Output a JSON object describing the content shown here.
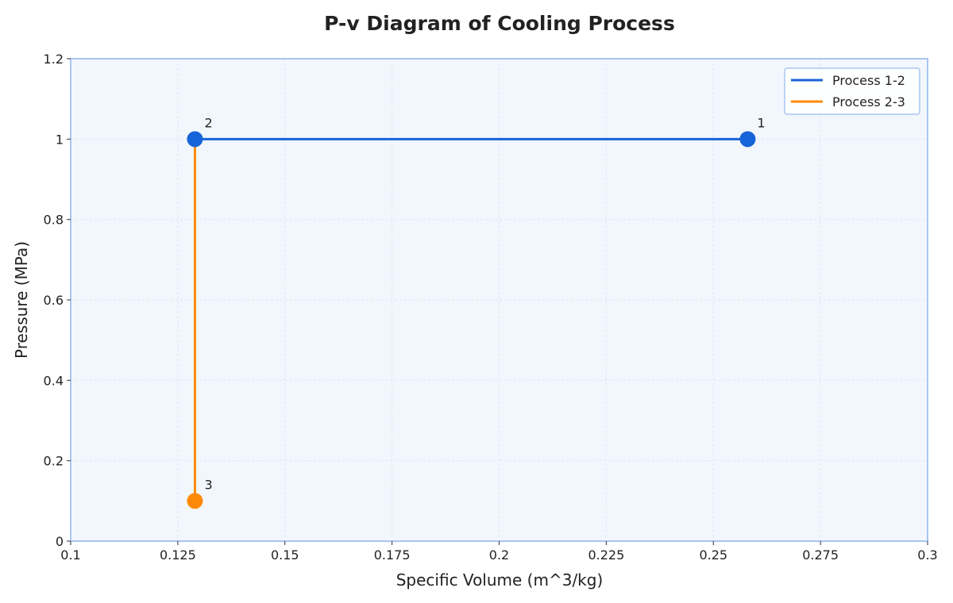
{
  "chart_data": {
    "type": "line",
    "title": "P-v Diagram of Cooling Process",
    "xlabel": "Specific Volume (m^3/kg)",
    "ylabel": "Pressure (MPa)",
    "xlim": [
      0.1,
      0.3
    ],
    "ylim": [
      0,
      1.2
    ],
    "xticks": [
      0.1,
      0.125,
      0.15,
      0.175,
      0.2,
      0.225,
      0.25,
      0.275,
      0.3
    ],
    "xtick_labels": [
      "0.1",
      "0.125",
      "0.15",
      "0.175",
      "0.2",
      "0.225",
      "0.25",
      "0.275",
      "0.3"
    ],
    "yticks": [
      0,
      0.2,
      0.4,
      0.6,
      0.8,
      1.0,
      1.2
    ],
    "ytick_labels": [
      "0",
      "0.2",
      "0.4",
      "0.6",
      "0.8",
      "1",
      "1.2"
    ],
    "grid": true,
    "legend_position": "top-right",
    "series": [
      {
        "name": "Process 1-2",
        "color": "#1764d8",
        "x": [
          0.258,
          0.129
        ],
        "y": [
          1.0,
          1.0
        ]
      },
      {
        "name": "Process 2-3",
        "color": "#ff8a0a",
        "x": [
          0.129,
          0.129
        ],
        "y": [
          1.0,
          0.1
        ]
      }
    ],
    "points": [
      {
        "label": "1",
        "x": 0.258,
        "y": 1.0,
        "color": "#1764d8"
      },
      {
        "label": "2",
        "x": 0.129,
        "y": 1.0,
        "color": "#1764d8"
      },
      {
        "label": "3",
        "x": 0.129,
        "y": 0.1,
        "color": "#ff8a0a"
      }
    ]
  }
}
